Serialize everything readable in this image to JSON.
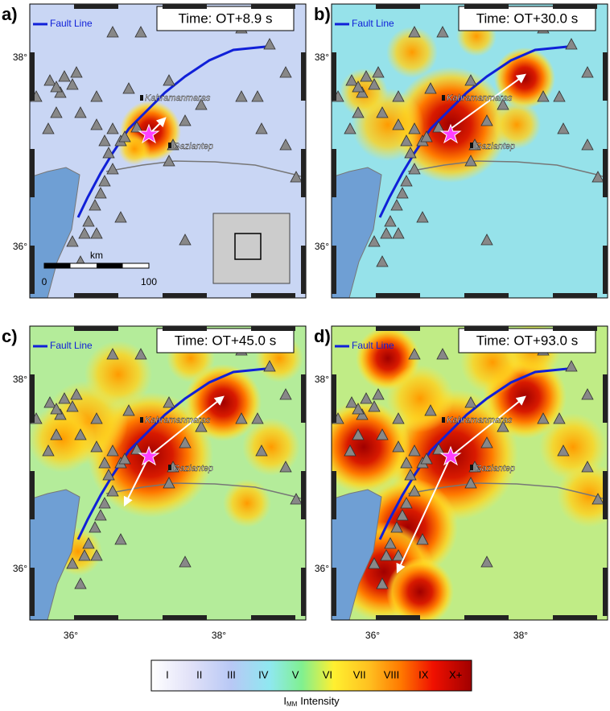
{
  "panels": [
    {
      "label": "a)",
      "time": "Time: OT+8.9 s",
      "legend": "Fault Line",
      "cities": [
        "Kahramanmaras",
        "Gaziantep"
      ],
      "lat_labels": [
        "38°",
        "36°"
      ],
      "scale": {
        "unit": "km",
        "start": "0",
        "end": "100"
      }
    },
    {
      "label": "b)",
      "time": "Time: OT+30.0 s",
      "legend": "Fault Line",
      "cities": [
        "Kahramanmaras",
        "Gaziantep"
      ],
      "lat_labels": [
        "38°",
        "36°"
      ]
    },
    {
      "label": "c)",
      "time": "Time: OT+45.0 s",
      "legend": "Fault Line",
      "cities": [
        "Kahramanmaras",
        "Gaziantep"
      ],
      "lat_labels": [
        "38°",
        "36°"
      ],
      "lon_labels": [
        "36°",
        "38°"
      ]
    },
    {
      "label": "d)",
      "time": "Time: OT+93.0 s",
      "legend": "Fault Line",
      "cities": [
        "Kahramanmaras",
        "Gaziantep"
      ],
      "lat_labels": [
        "38°",
        "36°"
      ],
      "lon_labels": [
        "36°",
        "38°"
      ]
    }
  ],
  "colorbar": {
    "labels": [
      "I",
      "II",
      "III",
      "IV",
      "V",
      "VI",
      "VII",
      "VIII",
      "IX",
      "X+"
    ],
    "title": [
      "I",
      "MM",
      "Intensity"
    ]
  }
}
